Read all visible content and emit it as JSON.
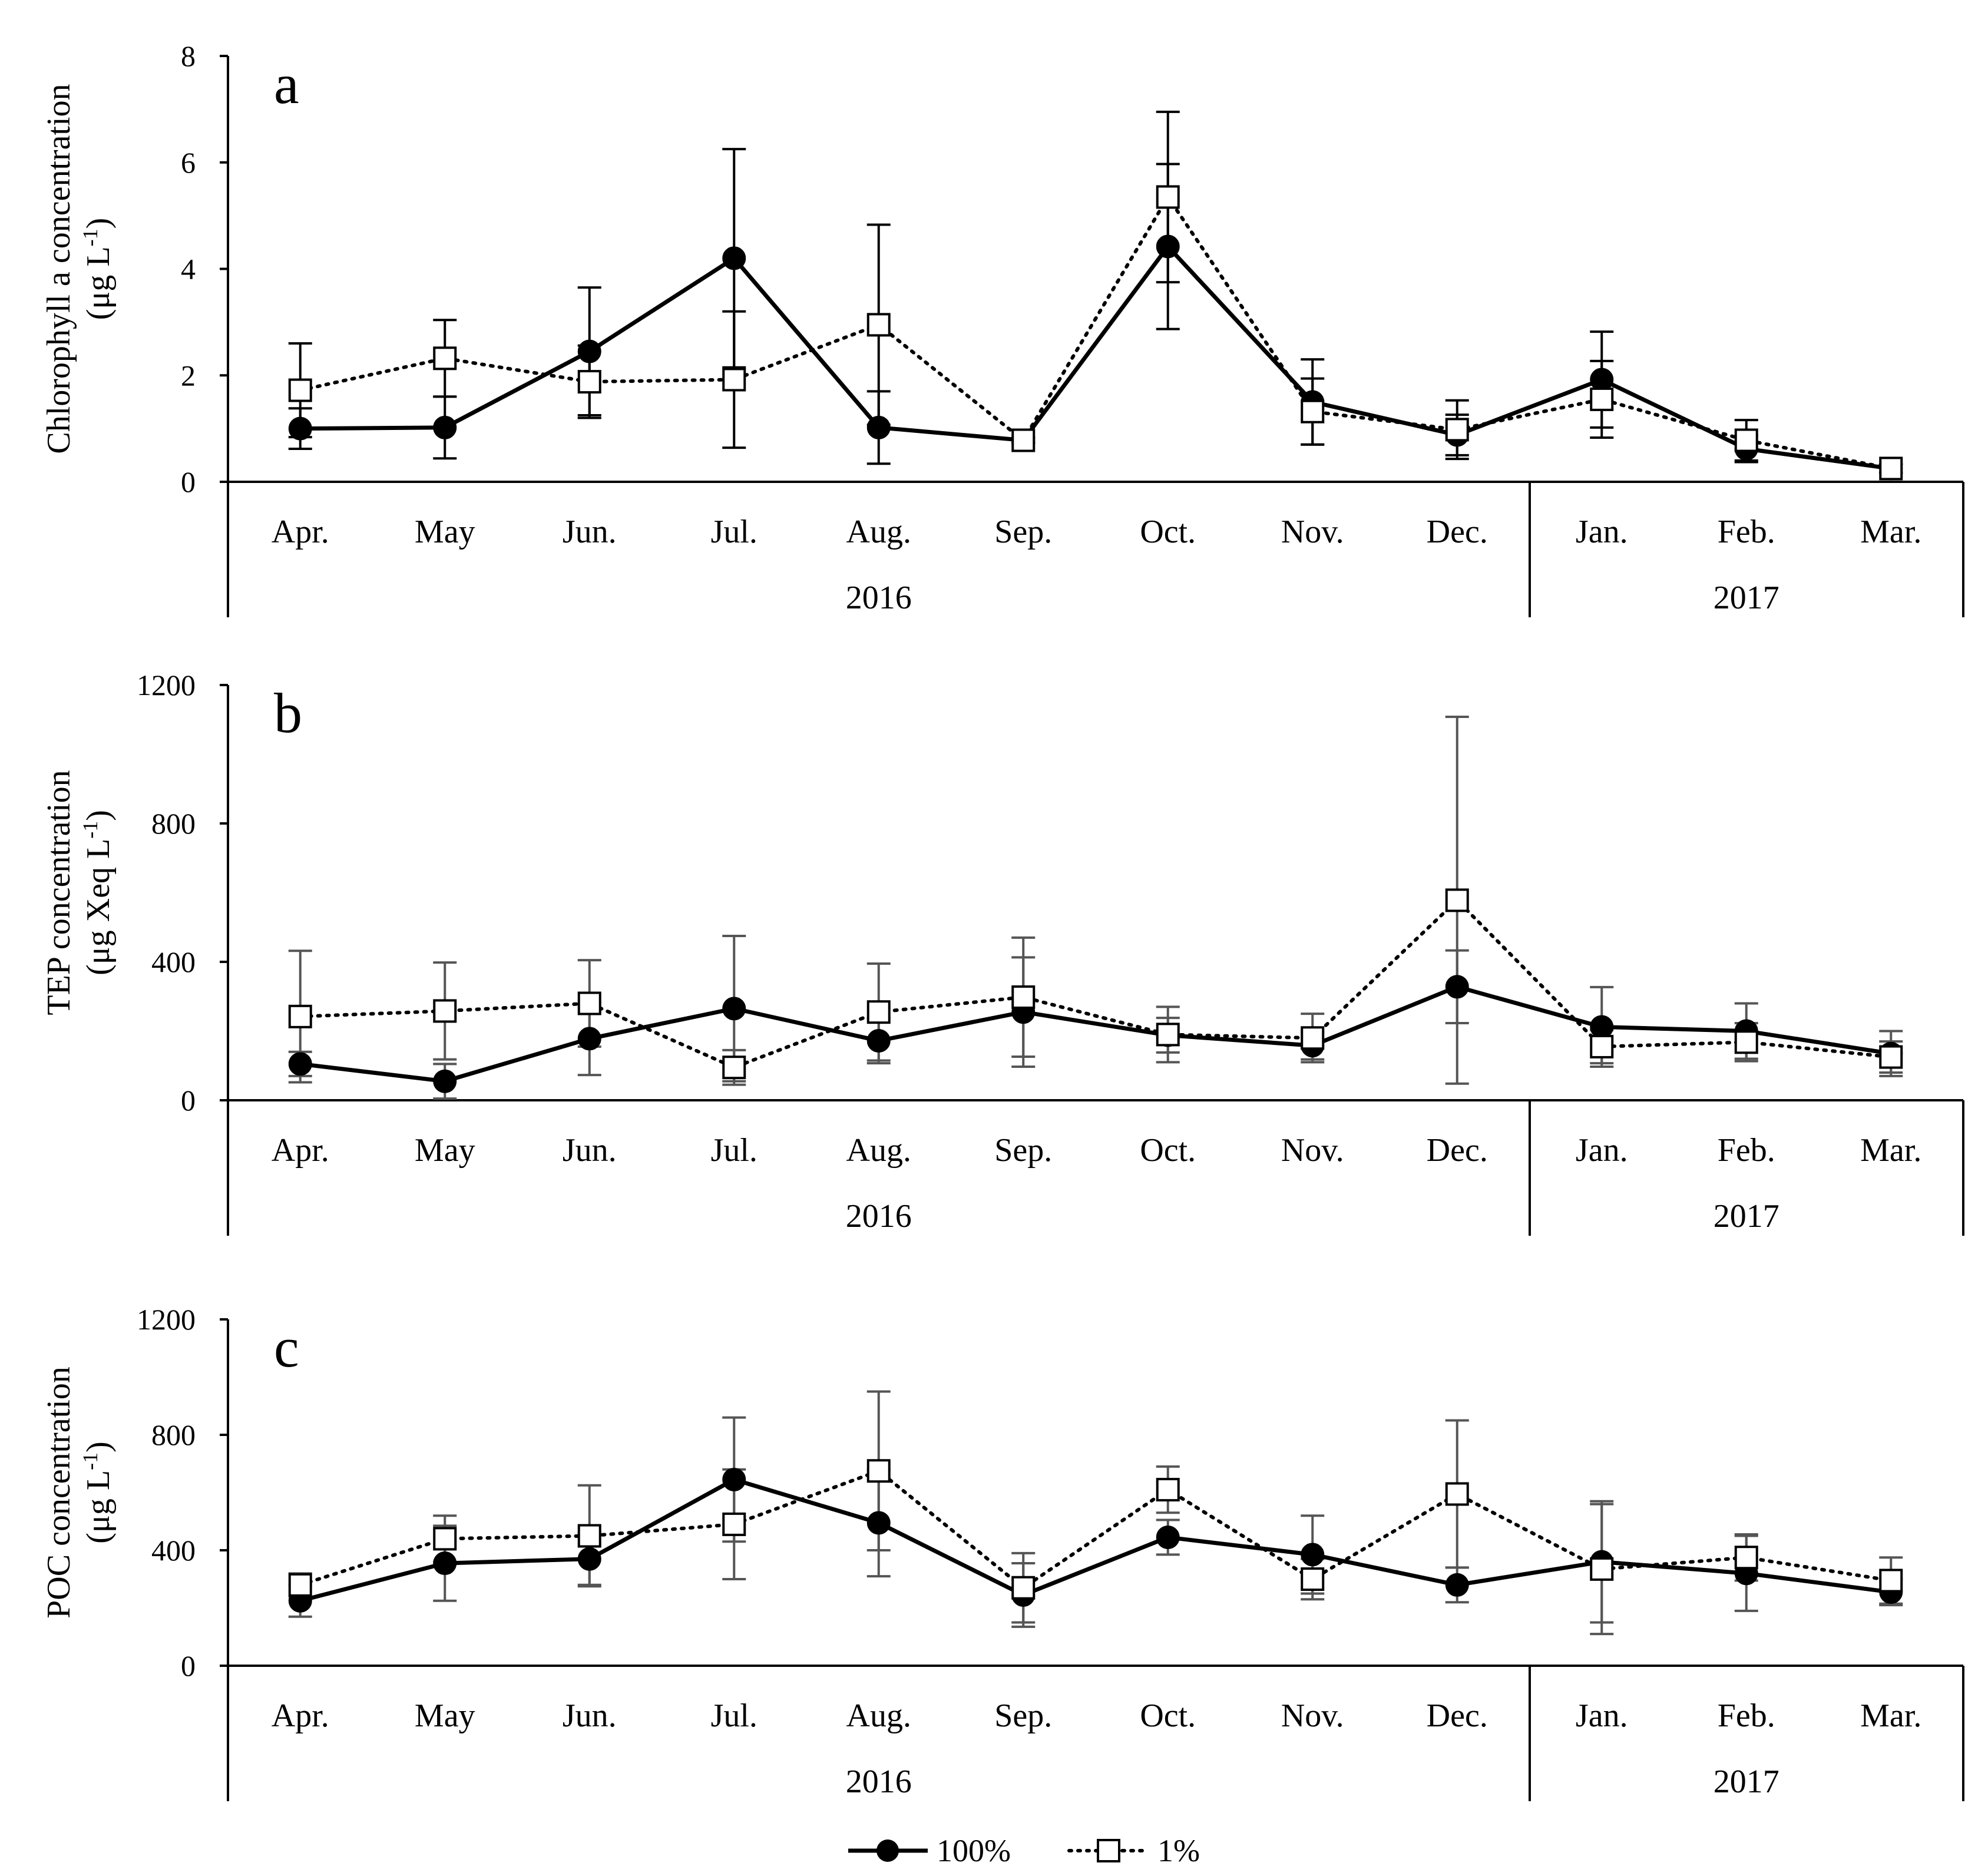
{
  "chart_data": [
    {
      "type": "line",
      "panel_letter": "a",
      "ylabel": "Chlorophyll a concentration",
      "ylabel_unit": "(μg L-1)",
      "ylim": [
        0,
        8
      ],
      "yticks": [
        0,
        2,
        4,
        6,
        8
      ],
      "categories": [
        "Apr.",
        "May",
        "Jun.",
        "Jul.",
        "Aug.",
        "Sep.",
        "Oct.",
        "Nov.",
        "Dec.",
        "Jan.",
        "Feb.",
        "Mar."
      ],
      "year_groups": [
        {
          "label": "2016",
          "count": 9
        },
        {
          "label": "2017",
          "count": 3
        }
      ],
      "error_bar_color": "#000000",
      "series": [
        {
          "name": "100%",
          "style": "solid",
          "marker": "filled-circle",
          "values": [
            1.0,
            1.02,
            2.45,
            4.2,
            1.02,
            0.78,
            4.42,
            1.5,
            0.88,
            1.92,
            0.62,
            0.25
          ],
          "errors": [
            0.38,
            0.58,
            1.2,
            2.05,
            0.68,
            0.05,
            1.55,
            0.8,
            0.38,
            0.9,
            0.25,
            0.08
          ]
        },
        {
          "name": "1%",
          "style": "dotted",
          "marker": "open-square",
          "values": [
            1.72,
            2.32,
            1.88,
            1.92,
            2.95,
            0.78,
            5.35,
            1.32,
            0.98,
            1.55,
            0.78,
            0.25
          ],
          "errors": [
            0.88,
            0.72,
            0.68,
            1.28,
            1.88,
            0.05,
            1.6,
            0.62,
            0.55,
            0.72,
            0.38,
            0.08
          ]
        }
      ]
    },
    {
      "type": "line",
      "panel_letter": "b",
      "ylabel": "TEP concentration",
      "ylabel_unit": "(μg Xeq L-1)",
      "ylim": [
        0,
        1200
      ],
      "yticks": [
        0,
        400,
        800,
        1200
      ],
      "categories": [
        "Apr.",
        "May",
        "Jun.",
        "Jul.",
        "Aug.",
        "Sep.",
        "Oct.",
        "Nov.",
        "Dec.",
        "Jan.",
        "Feb.",
        "Mar."
      ],
      "year_groups": [
        {
          "label": "2016",
          "count": 9
        },
        {
          "label": "2017",
          "count": 3
        }
      ],
      "error_bar_color": "#555555",
      "series": [
        {
          "name": "100%",
          "style": "solid",
          "marker": "filled-circle",
          "values": [
            105,
            55,
            178,
            265,
            172,
            255,
            188,
            158,
            328,
            212,
            200,
            135
          ],
          "errors": [
            35,
            50,
            105,
            210,
            65,
            158,
            50,
            40,
            105,
            115,
            80,
            65
          ]
        },
        {
          "name": "1%",
          "style": "dotted",
          "marker": "open-square",
          "values": [
            242,
            258,
            280,
            95,
            255,
            298,
            190,
            180,
            578,
            155,
            168,
            125
          ],
          "errors": [
            190,
            140,
            125,
            50,
            140,
            172,
            80,
            70,
            530,
            48,
            55,
            45
          ]
        }
      ]
    },
    {
      "type": "line",
      "panel_letter": "c",
      "ylabel": "POC concentration",
      "ylabel_unit": "(μg L-1)",
      "ylim": [
        0,
        1200
      ],
      "yticks": [
        0,
        400,
        800,
        1200
      ],
      "categories": [
        "Apr.",
        "May",
        "Jun.",
        "Jul.",
        "Aug.",
        "Sep.",
        "Oct.",
        "Nov.",
        "Dec.",
        "Jan.",
        "Feb.",
        "Mar."
      ],
      "year_groups": [
        {
          "label": "2016",
          "count": 9
        },
        {
          "label": "2017",
          "count": 3
        }
      ],
      "error_bar_color": "#555555",
      "series": [
        {
          "name": "100%",
          "style": "solid",
          "marker": "filled-circle",
          "values": [
            225,
            355,
            370,
            645,
            495,
            245,
            445,
            385,
            280,
            360,
            320,
            255
          ],
          "errors": [
            55,
            130,
            90,
            215,
            185,
            110,
            60,
            135,
            60,
            210,
            130,
            45
          ]
        },
        {
          "name": "1%",
          "style": "dotted",
          "marker": "open-square",
          "values": [
            280,
            440,
            450,
            490,
            675,
            270,
            610,
            300,
            595,
            335,
            375,
            295
          ],
          "errors": [
            40,
            80,
            175,
            190,
            275,
            120,
            80,
            70,
            255,
            225,
            80,
            80
          ]
        }
      ]
    }
  ],
  "legend": {
    "placement": "bottom-center",
    "items": [
      {
        "label": "100%",
        "style": "solid",
        "marker": "filled-circle"
      },
      {
        "label": "1%",
        "style": "dotted",
        "marker": "open-square"
      }
    ]
  }
}
